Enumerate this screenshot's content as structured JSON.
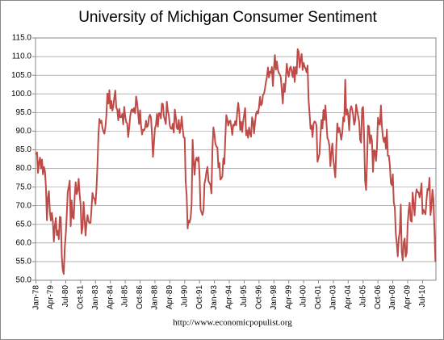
{
  "chart_data": {
    "type": "line",
    "title": "University of Michigan Consumer Sentiment",
    "source": "http://www.economicpopulist.org",
    "color": "#be4b48",
    "grid": true,
    "ylim": [
      50,
      115
    ],
    "yticks": [
      {
        "value": 50,
        "label": "50.0"
      },
      {
        "value": 55,
        "label": "55.0"
      },
      {
        "value": 60,
        "label": "60.0"
      },
      {
        "value": 65,
        "label": "65.0"
      },
      {
        "value": 70,
        "label": "70.0"
      },
      {
        "value": 75,
        "label": "75.0"
      },
      {
        "value": 80,
        "label": "80.0"
      },
      {
        "value": 85,
        "label": "85.0"
      },
      {
        "value": 90,
        "label": "90.0"
      },
      {
        "value": 95,
        "label": "95.0"
      },
      {
        "value": 100,
        "label": "100.0"
      },
      {
        "value": 105,
        "label": "105.0"
      },
      {
        "value": 110,
        "label": "110.0"
      },
      {
        "value": 115,
        "label": "115.0"
      }
    ],
    "categories": [
      "Jan-78",
      null,
      null,
      null,
      null,
      null,
      null,
      null,
      null,
      null,
      null,
      null,
      null,
      null,
      null,
      "Apr-79",
      null,
      null,
      null,
      null,
      null,
      null,
      null,
      null,
      null,
      null,
      null,
      null,
      null,
      null,
      "Jul-80",
      null,
      null,
      null,
      null,
      null,
      null,
      null,
      null,
      null,
      null,
      null,
      null,
      null,
      null,
      "Oct-81",
      null,
      null,
      null,
      null,
      null,
      null,
      null,
      null,
      null,
      null,
      null,
      null,
      null,
      null,
      "Jan-83",
      null,
      null,
      null,
      null,
      null,
      null,
      null,
      null,
      null,
      null,
      null,
      null,
      null,
      null,
      "Apr-84",
      null,
      null,
      null,
      null,
      null,
      null,
      null,
      null,
      null,
      null,
      null,
      null,
      null,
      null,
      "Jul-85",
      null,
      null,
      null,
      null,
      null,
      null,
      null,
      null,
      null,
      null,
      null,
      null,
      null,
      null,
      "Oct-86",
      null,
      null,
      null,
      null,
      null,
      null,
      null,
      null,
      null,
      null,
      null,
      null,
      null,
      null,
      "Jan-88",
      null,
      null,
      null,
      null,
      null,
      null,
      null,
      null,
      null,
      null,
      null,
      null,
      null,
      null,
      "Apr-89",
      null,
      null,
      null,
      null,
      null,
      null,
      null,
      null,
      null,
      null,
      null,
      null,
      null,
      null,
      "Jul-90",
      null,
      null,
      null,
      null,
      null,
      null,
      null,
      null,
      null,
      null,
      null,
      null,
      null,
      null,
      "Oct-91",
      null,
      null,
      null,
      null,
      null,
      null,
      null,
      null,
      null,
      null,
      null,
      null,
      null,
      null,
      "Jan-93",
      null,
      null,
      null,
      null,
      null,
      null,
      null,
      null,
      null,
      null,
      null,
      null,
      null,
      null,
      "Apr-94",
      null,
      null,
      null,
      null,
      null,
      null,
      null,
      null,
      null,
      null,
      null,
      null,
      null,
      null,
      "Jul-95",
      null,
      null,
      null,
      null,
      null,
      null,
      null,
      null,
      null,
      null,
      null,
      null,
      null,
      null,
      "Oct-96",
      null,
      null,
      null,
      null,
      null,
      null,
      null,
      null,
      null,
      null,
      null,
      null,
      null,
      null,
      "Jan-98",
      null,
      null,
      null,
      null,
      null,
      null,
      null,
      null,
      null,
      null,
      null,
      null,
      null,
      null,
      "Apr-99",
      null,
      null,
      null,
      null,
      null,
      null,
      null,
      null,
      null,
      null,
      null,
      null,
      null,
      null,
      "Jul-00",
      null,
      null,
      null,
      null,
      null,
      null,
      null,
      null,
      null,
      null,
      null,
      null,
      null,
      null,
      "Oct-01",
      null,
      null,
      null,
      null,
      null,
      null,
      null,
      null,
      null,
      null,
      null,
      null,
      null,
      null,
      "Jan-03",
      null,
      null,
      null,
      null,
      null,
      null,
      null,
      null,
      null,
      null,
      null,
      null,
      null,
      null,
      "Apr-04",
      null,
      null,
      null,
      null,
      null,
      null,
      null,
      null,
      null,
      null,
      null,
      null,
      null,
      null,
      "Jul-05",
      null,
      null,
      null,
      null,
      null,
      null,
      null,
      null,
      null,
      null,
      null,
      null,
      null,
      null,
      "Oct-06",
      null,
      null,
      null,
      null,
      null,
      null,
      null,
      null,
      null,
      null,
      null,
      null,
      null,
      null,
      "Jan-08",
      null,
      null,
      null,
      null,
      null,
      null,
      null,
      null,
      null,
      null,
      null,
      null,
      null,
      null,
      "Apr-09",
      null,
      null,
      null,
      null,
      null,
      null,
      null,
      null,
      null,
      null,
      null,
      null,
      null,
      null,
      "Jul-10",
      null,
      null,
      null,
      null,
      null,
      null,
      null,
      null,
      null,
      null,
      null,
      null,
      null
    ],
    "values": [
      83.7,
      84.3,
      78.8,
      81.6,
      82.9,
      80.0,
      82.4,
      78.4,
      80.4,
      79.3,
      75.0,
      66.1,
      72.1,
      73.9,
      68.4,
      66.0,
      68.1,
      65.8,
      60.4,
      64.5,
      66.7,
      62.1,
      63.3,
      61.0,
      67.0,
      66.9,
      56.5,
      52.7,
      51.7,
      58.7,
      62.3,
      67.3,
      73.7,
      75.0,
      76.7,
      64.5,
      71.4,
      66.9,
      66.5,
      72.4,
      76.3,
      73.1,
      74.1,
      77.2,
      73.1,
      70.3,
      62.5,
      64.3,
      71.0,
      66.5,
      62.0,
      65.5,
      67.5,
      65.7,
      65.4,
      65.4,
      69.3,
      73.4,
      72.1,
      71.9,
      70.4,
      74.6,
      80.8,
      89.1,
      93.3,
      92.2,
      92.8,
      90.9,
      89.9,
      89.3,
      91.1,
      94.2,
      100.1,
      97.4,
      101.0,
      96.1,
      98.1,
      95.5,
      96.6,
      99.1,
      100.9,
      96.3,
      95.7,
      92.9,
      96.0,
      93.7,
      93.7,
      94.6,
      91.8,
      96.5,
      94.0,
      92.4,
      92.1,
      88.4,
      90.9,
      93.9,
      95.6,
      95.9,
      95.1,
      96.2,
      94.8,
      99.3,
      97.7,
      94.9,
      91.9,
      95.6,
      91.4,
      89.1,
      90.4,
      90.2,
      90.8,
      92.8,
      91.1,
      91.5,
      93.7,
      94.4,
      93.6,
      89.3,
      83.1,
      86.8,
      90.8,
      91.6,
      94.6,
      91.2,
      94.8,
      94.7,
      93.4,
      97.4,
      97.3,
      94.1,
      93.0,
      91.9,
      97.9,
      95.4,
      94.3,
      91.5,
      90.7,
      90.6,
      92.0,
      89.6,
      95.8,
      93.9,
      90.9,
      90.5,
      93.0,
      89.5,
      91.3,
      93.9,
      90.6,
      88.3,
      88.2,
      76.4,
      72.8,
      63.9,
      66.0,
      65.5,
      66.8,
      70.4,
      87.7,
      81.8,
      78.3,
      82.1,
      82.9,
      82.0,
      83.0,
      78.3,
      69.1,
      68.2,
      67.5,
      68.8,
      76.0,
      77.2,
      79.2,
      80.4,
      76.6,
      76.1,
      75.6,
      73.3,
      85.3,
      91.0,
      89.3,
      86.6,
      85.9,
      85.6,
      80.3,
      81.5,
      77.0,
      77.3,
      77.9,
      82.7,
      81.2,
      88.2,
      94.3,
      93.2,
      91.5,
      92.6,
      92.8,
      91.2,
      89.0,
      91.7,
      91.5,
      92.7,
      91.6,
      95.1,
      97.6,
      95.1,
      90.3,
      92.5,
      89.8,
      92.7,
      94.4,
      96.2,
      88.9,
      90.2,
      88.2,
      91.0,
      89.3,
      88.5,
      93.7,
      92.7,
      89.4,
      92.4,
      94.7,
      95.3,
      94.7,
      96.5,
      99.2,
      96.9,
      97.4,
      99.7,
      100.0,
      101.4,
      103.2,
      104.5,
      107.1,
      104.4,
      106.0,
      105.6,
      107.2,
      102.1,
      106.6,
      110.4,
      106.5,
      108.7,
      106.5,
      105.6,
      105.2,
      104.4,
      100.9,
      97.4,
      102.7,
      100.5,
      103.9,
      108.1,
      105.7,
      104.6,
      106.8,
      107.3,
      106.0,
      104.5,
      107.2,
      103.2,
      107.2,
      105.4,
      112.0,
      111.3,
      107.1,
      109.2,
      110.7,
      106.4,
      108.3,
      107.3,
      106.8,
      105.8,
      107.6,
      98.4,
      94.7,
      90.6,
      91.5,
      88.4,
      92.0,
      92.6,
      92.4,
      91.5,
      81.8,
      82.7,
      83.9,
      88.8,
      93.0,
      90.7,
      95.7,
      93.0,
      96.9,
      92.4,
      88.1,
      87.6,
      86.1,
      80.6,
      84.2,
      86.7,
      82.4,
      79.9,
      77.6,
      86.0,
      92.1,
      89.7,
      90.9,
      89.3,
      87.7,
      89.6,
      93.7,
      92.6,
      103.8,
      94.4,
      95.8,
      94.2,
      90.2,
      95.6,
      96.7,
      95.9,
      94.2,
      91.7,
      92.8,
      97.1,
      95.5,
      94.1,
      92.6,
      87.7,
      86.9,
      96.0,
      96.5,
      89.1,
      76.9,
      74.2,
      81.6,
      91.5,
      91.2,
      86.7,
      88.9,
      87.4,
      79.1,
      84.9,
      84.7,
      82.0,
      85.4,
      93.6,
      92.1,
      91.7,
      96.9,
      91.3,
      88.4,
      87.1,
      88.3,
      85.3,
      90.4,
      83.4,
      83.4,
      80.9,
      76.1,
      75.5,
      78.4,
      70.8,
      69.5,
      62.6,
      59.8,
      56.4,
      61.2,
      63.0,
      70.3,
      57.6,
      55.3,
      60.1,
      61.2,
      56.3,
      57.3,
      65.1,
      68.7,
      70.8,
      66.0,
      65.7,
      73.5,
      70.6,
      67.4,
      72.5,
      74.4,
      73.6,
      73.6,
      72.2,
      73.6,
      76.0,
      67.8,
      68.9,
      68.2,
      67.7,
      71.6,
      74.5,
      74.2,
      77.5,
      67.5,
      69.8,
      74.3,
      71.5,
      63.7,
      54.9
    ]
  }
}
